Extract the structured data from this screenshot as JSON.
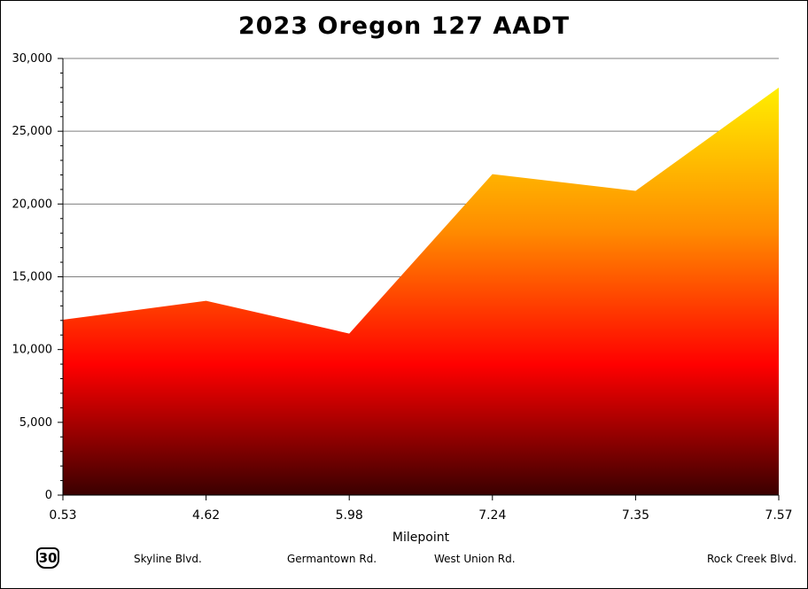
{
  "chart_data": {
    "type": "area",
    "title": "2023 Oregon 127 AADT",
    "xlabel": "Milepoint",
    "ylabel": "",
    "x": [
      "0.53",
      "4.62",
      "5.98",
      "7.24",
      "7.35",
      "7.57"
    ],
    "values": [
      12050,
      13350,
      11100,
      22050,
      20900,
      28000
    ],
    "ylim": [
      0,
      30000
    ],
    "yticks": [
      "0",
      "5,000",
      "10,000",
      "15,000",
      "20,000",
      "25,000",
      "30,000"
    ],
    "grid": "horizontal",
    "fill_gradient": [
      "#ffee00",
      "#ff8c00",
      "#ff0000",
      "#3a0000"
    ]
  },
  "route_shield": "30",
  "road_labels": [
    "Skyline Blvd.",
    "Germantown Rd.",
    "West Union Rd.",
    "Rock Creek Blvd."
  ]
}
